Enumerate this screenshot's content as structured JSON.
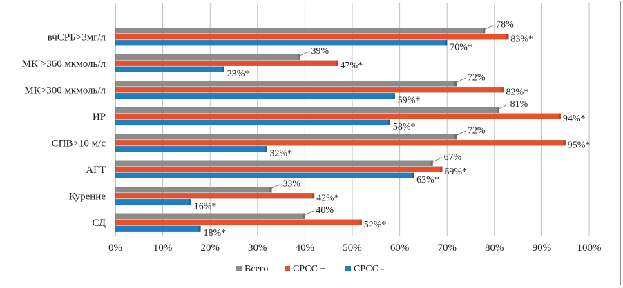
{
  "chart_data": {
    "type": "bar",
    "orientation": "horizontal",
    "categories": [
      "вчСРБ>3мг/л",
      "МК >360 мкмоль/л",
      "МК>300 мкмоль/л",
      "ИР",
      "СПВ>10 м/с",
      "АГТ",
      "Курение",
      "СД"
    ],
    "series": [
      {
        "name": "Всего",
        "color": "#8c8c8c",
        "values": [
          78,
          39,
          72,
          81,
          72,
          67,
          33,
          40
        ],
        "labels": [
          "78%",
          "39%",
          "72%",
          "81%",
          "72%",
          "67%",
          "33%",
          "40%"
        ]
      },
      {
        "name": "СРСС +",
        "color": "#e8502b",
        "values": [
          83,
          47,
          82,
          94,
          95,
          69,
          42,
          52
        ],
        "labels": [
          "83%*",
          "47%*",
          "82%*",
          "94%*",
          "95%*",
          "69%*",
          "42%*",
          "52%*"
        ]
      },
      {
        "name": "СРСС -",
        "color": "#1f7fc1",
        "values": [
          70,
          23,
          59,
          58,
          32,
          63,
          16,
          18
        ],
        "labels": [
          "70%*",
          "23%*",
          "59%*",
          "58%*",
          "32%*",
          "63%*",
          "16%*",
          "18%*"
        ]
      }
    ],
    "xticks": [
      "0%",
      "10%",
      "20%",
      "30%",
      "40%",
      "50%",
      "60%",
      "70%",
      "80%",
      "90%",
      "100%"
    ],
    "xlim": [
      0,
      100
    ],
    "grid": true,
    "legend": "bottom",
    "title": "",
    "xlabel": "",
    "ylabel": ""
  }
}
